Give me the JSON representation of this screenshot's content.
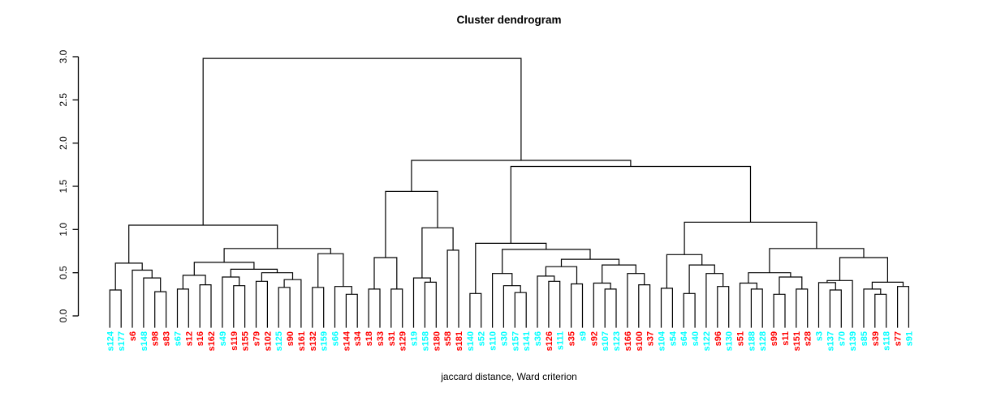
{
  "title": "Cluster dendrogram",
  "xlabel": "jaccard distance, Ward criterion",
  "colors": {
    "c": "#00FFFF",
    "r": "#FF0000",
    "line": "#000000",
    "background": "#FFFFFF"
  },
  "chart_data": {
    "type": "dendrogram",
    "title": "Cluster dendrogram",
    "xlabel": "jaccard distance, Ward criterion",
    "ylabel": "",
    "ylim": [
      0.0,
      3.0
    ],
    "grid": false,
    "y_tick_labels": [
      "0.0",
      "0.5",
      "1.0",
      "1.5",
      "2.0",
      "2.5",
      "3.0"
    ],
    "y_tick_values": [
      0.0,
      0.5,
      1.0,
      1.5,
      2.0,
      2.5,
      3.0
    ],
    "leaves": [
      [
        "s124",
        "c"
      ],
      [
        "s177",
        "c"
      ],
      [
        "s6",
        "r"
      ],
      [
        "s148",
        "c"
      ],
      [
        "s98",
        "r"
      ],
      [
        "s83",
        "r"
      ],
      [
        "s67",
        "c"
      ],
      [
        "s12",
        "r"
      ],
      [
        "s16",
        "r"
      ],
      [
        "s162",
        "r"
      ],
      [
        "s49",
        "c"
      ],
      [
        "s119",
        "r"
      ],
      [
        "s155",
        "r"
      ],
      [
        "s79",
        "r"
      ],
      [
        "s102",
        "r"
      ],
      [
        "s125",
        "c"
      ],
      [
        "s90",
        "r"
      ],
      [
        "s161",
        "r"
      ],
      [
        "s132",
        "r"
      ],
      [
        "s159",
        "c"
      ],
      [
        "s66",
        "c"
      ],
      [
        "s144",
        "r"
      ],
      [
        "s34",
        "r"
      ],
      [
        "s18",
        "r"
      ],
      [
        "s33",
        "r"
      ],
      [
        "s31",
        "r"
      ],
      [
        "s129",
        "r"
      ],
      [
        "s19",
        "c"
      ],
      [
        "s158",
        "c"
      ],
      [
        "s180",
        "r"
      ],
      [
        "s58",
        "r"
      ],
      [
        "s181",
        "r"
      ],
      [
        "s140",
        "c"
      ],
      [
        "s52",
        "c"
      ],
      [
        "s110",
        "c"
      ],
      [
        "s30",
        "c"
      ],
      [
        "s157",
        "c"
      ],
      [
        "s141",
        "c"
      ],
      [
        "s36",
        "c"
      ],
      [
        "s126",
        "r"
      ],
      [
        "s111",
        "c"
      ],
      [
        "s35",
        "r"
      ],
      [
        "s9",
        "c"
      ],
      [
        "s92",
        "r"
      ],
      [
        "s107",
        "c"
      ],
      [
        "s123",
        "c"
      ],
      [
        "s166",
        "r"
      ],
      [
        "s100",
        "r"
      ],
      [
        "s37",
        "r"
      ],
      [
        "s104",
        "c"
      ],
      [
        "s54",
        "c"
      ],
      [
        "s64",
        "c"
      ],
      [
        "s40",
        "c"
      ],
      [
        "s122",
        "c"
      ],
      [
        "s96",
        "r"
      ],
      [
        "s130",
        "c"
      ],
      [
        "s51",
        "r"
      ],
      [
        "s188",
        "c"
      ],
      [
        "s128",
        "c"
      ],
      [
        "s99",
        "r"
      ],
      [
        "s11",
        "r"
      ],
      [
        "s151",
        "r"
      ],
      [
        "s28",
        "r"
      ],
      [
        "s3",
        "c"
      ],
      [
        "s137",
        "c"
      ],
      [
        "s70",
        "c"
      ],
      [
        "s139",
        "c"
      ],
      [
        "s85",
        "c"
      ],
      [
        "s39",
        "r"
      ],
      [
        "s118",
        "c"
      ],
      [
        "s77",
        "r"
      ],
      [
        "s91",
        "c"
      ]
    ],
    "tree": {
      "h": 2.98,
      "c": [
        {
          "h": 1.05,
          "c": [
            {
              "h": 0.61,
              "c": [
                {
                  "h": 0.3,
                  "c": [
                    "s124",
                    "s177"
                  ]
                },
                {
                  "h": 0.53,
                  "c": [
                    "s6",
                    {
                      "h": 0.44,
                      "c": [
                        "s148",
                        {
                          "h": 0.28,
                          "c": [
                            "s98",
                            "s83"
                          ]
                        }
                      ]
                    }
                  ]
                }
              ]
            },
            {
              "h": 0.78,
              "c": [
                {
                  "h": 0.62,
                  "c": [
                    {
                      "h": 0.47,
                      "c": [
                        {
                          "h": 0.31,
                          "c": [
                            "s67",
                            "s12"
                          ]
                        },
                        {
                          "h": 0.36,
                          "c": [
                            "s16",
                            "s162"
                          ]
                        }
                      ]
                    },
                    {
                      "h": 0.54,
                      "c": [
                        {
                          "h": 0.45,
                          "c": [
                            "s49",
                            {
                              "h": 0.35,
                              "c": [
                                "s119",
                                "s155"
                              ]
                            }
                          ]
                        },
                        {
                          "h": 0.5,
                          "c": [
                            {
                              "h": 0.4,
                              "c": [
                                "s79",
                                "s102"
                              ]
                            },
                            {
                              "h": 0.42,
                              "c": [
                                {
                                  "h": 0.33,
                                  "c": [
                                    "s125",
                                    "s90"
                                  ]
                                },
                                "s161"
                              ]
                            }
                          ]
                        }
                      ]
                    }
                  ]
                },
                {
                  "h": 0.72,
                  "c": [
                    {
                      "h": 0.33,
                      "c": [
                        "s132",
                        "s159"
                      ]
                    },
                    {
                      "h": 0.34,
                      "c": [
                        "s66",
                        {
                          "h": 0.25,
                          "c": [
                            "s144",
                            "s34"
                          ]
                        }
                      ]
                    }
                  ]
                }
              ]
            }
          ]
        },
        {
          "h": 1.8,
          "c": [
            {
              "h": 1.44,
              "c": [
                {
                  "h": 0.675,
                  "c": [
                    {
                      "h": 0.31,
                      "c": [
                        "s18",
                        "s33"
                      ]
                    },
                    {
                      "h": 0.31,
                      "c": [
                        "s31",
                        "s129"
                      ]
                    }
                  ]
                },
                {
                  "h": 1.02,
                  "c": [
                    {
                      "h": 0.44,
                      "c": [
                        "s19",
                        {
                          "h": 0.39,
                          "c": [
                            "s158",
                            "s180"
                          ]
                        }
                      ]
                    },
                    {
                      "h": 0.76,
                      "c": [
                        "s58",
                        "s181"
                      ]
                    }
                  ]
                }
              ]
            },
            {
              "h": 1.73,
              "c": [
                {
                  "h": 0.84,
                  "c": [
                    {
                      "h": 0.26,
                      "c": [
                        "s140",
                        "s52"
                      ]
                    },
                    {
                      "h": 0.77,
                      "c": [
                        {
                          "h": 0.49,
                          "c": [
                            "s110",
                            {
                              "h": 0.35,
                              "c": [
                                "s30",
                                {
                                  "h": 0.27,
                                  "c": [
                                    "s157",
                                    "s141"
                                  ]
                                }
                              ]
                            }
                          ]
                        },
                        {
                          "h": 0.655,
                          "c": [
                            {
                              "h": 0.57,
                              "c": [
                                {
                                  "h": 0.46,
                                  "c": [
                                    "s36",
                                    {
                                      "h": 0.4,
                                      "c": [
                                        "s126",
                                        "s111"
                                      ]
                                    }
                                  ]
                                },
                                {
                                  "h": 0.37,
                                  "c": [
                                    "s35",
                                    "s9"
                                  ]
                                }
                              ]
                            },
                            {
                              "h": 0.59,
                              "c": [
                                {
                                  "h": 0.38,
                                  "c": [
                                    "s92",
                                    {
                                      "h": 0.31,
                                      "c": [
                                        "s107",
                                        "s123"
                                      ]
                                    }
                                  ]
                                },
                                {
                                  "h": 0.49,
                                  "c": [
                                    "s166",
                                    {
                                      "h": 0.36,
                                      "c": [
                                        "s100",
                                        "s37"
                                      ]
                                    }
                                  ]
                                }
                              ]
                            }
                          ]
                        }
                      ]
                    }
                  ]
                },
                {
                  "h": 1.085,
                  "c": [
                    {
                      "h": 0.71,
                      "c": [
                        {
                          "h": 0.32,
                          "c": [
                            "s104",
                            "s54"
                          ]
                        },
                        {
                          "h": 0.59,
                          "c": [
                            {
                              "h": 0.26,
                              "c": [
                                "s64",
                                "s40"
                              ]
                            },
                            {
                              "h": 0.49,
                              "c": [
                                "s122",
                                {
                                  "h": 0.34,
                                  "c": [
                                    "s96",
                                    "s130"
                                  ]
                                }
                              ]
                            }
                          ]
                        }
                      ]
                    },
                    {
                      "h": 0.78,
                      "c": [
                        {
                          "h": 0.5,
                          "c": [
                            {
                              "h": 0.38,
                              "c": [
                                "s51",
                                {
                                  "h": 0.31,
                                  "c": [
                                    "s188",
                                    "s128"
                                  ]
                                }
                              ]
                            },
                            {
                              "h": 0.45,
                              "c": [
                                {
                                  "h": 0.25,
                                  "c": [
                                    "s99",
                                    "s11"
                                  ]
                                },
                                {
                                  "h": 0.31,
                                  "c": [
                                    "s151",
                                    "s28"
                                  ]
                                }
                              ]
                            }
                          ]
                        },
                        {
                          "h": 0.675,
                          "c": [
                            {
                              "h": 0.41,
                              "c": [
                                {
                                  "h": 0.385,
                                  "c": [
                                    "s3",
                                    {
                                      "h": 0.3,
                                      "c": [
                                        "s137",
                                        "s70"
                                      ]
                                    }
                                  ]
                                },
                                "s139"
                              ]
                            },
                            {
                              "h": 0.39,
                              "c": [
                                {
                                  "h": 0.31,
                                  "c": [
                                    "s85",
                                    {
                                      "h": 0.25,
                                      "c": [
                                        "s39",
                                        "s118"
                                      ]
                                    }
                                  ]
                                },
                                {
                                  "h": 0.34,
                                  "c": [
                                    "s77",
                                    "s91"
                                  ]
                                }
                              ]
                            }
                          ]
                        }
                      ]
                    }
                  ]
                }
              ]
            }
          ]
        }
      ]
    }
  }
}
